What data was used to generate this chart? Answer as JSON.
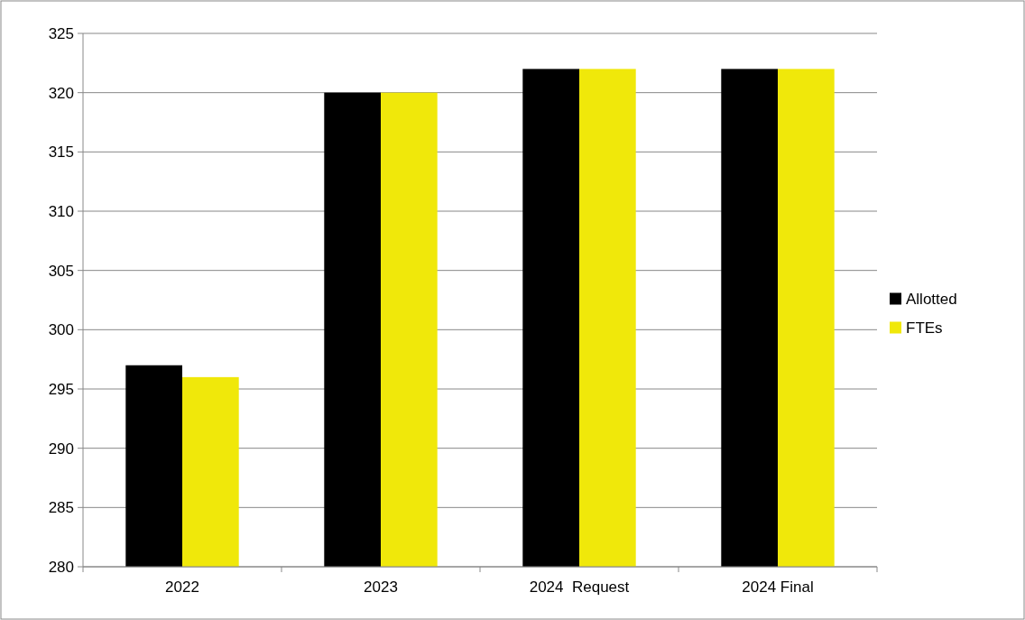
{
  "chart_data": {
    "type": "bar",
    "categories": [
      "2022",
      "2023",
      "2024  Request",
      "2024 Final"
    ],
    "series": [
      {
        "name": "Allotted",
        "color": "#000000",
        "values": [
          297,
          320,
          322,
          322
        ]
      },
      {
        "name": "FTEs",
        "color": "#f0e80a",
        "values": [
          296,
          320,
          322,
          322
        ]
      }
    ],
    "ylim": [
      280,
      325
    ],
    "yticks": [
      280,
      285,
      290,
      295,
      300,
      305,
      310,
      315,
      320,
      325
    ],
    "grid": "y",
    "legend": "right"
  }
}
